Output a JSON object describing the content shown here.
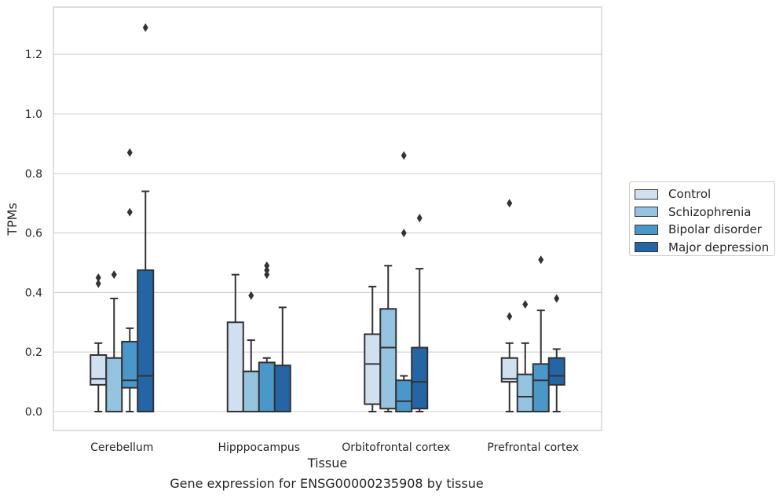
{
  "chart_data": {
    "type": "box",
    "title": "",
    "caption": "Gene expression for ENSG00000235908 by tissue",
    "xlabel": "Tissue",
    "ylabel": "TPMs",
    "ylim": [
      -0.06,
      1.36
    ],
    "yticks": [
      0.0,
      0.2,
      0.4,
      0.6,
      0.8,
      1.0,
      1.2
    ],
    "ytick_labels": [
      "0.0",
      "0.2",
      "0.4",
      "0.6",
      "0.8",
      "1.0",
      "1.2"
    ],
    "grid": "horizontal",
    "legend_position": "right",
    "categories": [
      "Cerebellum",
      "Hipppocampus",
      "Orbitofrontal cortex",
      "Prefrontal cortex"
    ],
    "series": [
      {
        "name": "Control",
        "color": "#d0e0f1",
        "boxes": [
          {
            "whislo": 0.0,
            "q1": 0.09,
            "med": 0.11,
            "q3": 0.19,
            "whishi": 0.23,
            "fliers": [
              0.43,
              0.45
            ]
          },
          {
            "whislo": 0.0,
            "q1": 0.0,
            "med": 0.0,
            "q3": 0.3,
            "whishi": 0.46,
            "fliers": []
          },
          {
            "whislo": 0.0,
            "q1": 0.025,
            "med": 0.16,
            "q3": 0.26,
            "whishi": 0.42,
            "fliers": []
          },
          {
            "whislo": 0.0,
            "q1": 0.1,
            "med": 0.11,
            "q3": 0.18,
            "whishi": 0.23,
            "fliers": [
              0.32,
              0.7
            ]
          }
        ]
      },
      {
        "name": "Schizophrenia",
        "color": "#94c4df",
        "boxes": [
          {
            "whislo": 0.0,
            "q1": 0.0,
            "med": 0.0,
            "q3": 0.18,
            "whishi": 0.38,
            "fliers": [
              0.46
            ]
          },
          {
            "whislo": 0.0,
            "q1": 0.0,
            "med": 0.135,
            "q3": 0.135,
            "whishi": 0.24,
            "fliers": [
              0.39
            ]
          },
          {
            "whislo": 0.0,
            "q1": 0.01,
            "med": 0.215,
            "q3": 0.345,
            "whishi": 0.49,
            "fliers": []
          },
          {
            "whislo": 0.0,
            "q1": 0.0,
            "med": 0.05,
            "q3": 0.125,
            "whishi": 0.23,
            "fliers": [
              0.36
            ]
          }
        ]
      },
      {
        "name": "Bipolar disorder",
        "color": "#4a98c9",
        "boxes": [
          {
            "whislo": 0.0,
            "q1": 0.08,
            "med": 0.105,
            "q3": 0.235,
            "whishi": 0.28,
            "fliers": [
              0.67,
              0.87
            ]
          },
          {
            "whislo": 0.0,
            "q1": 0.0,
            "med": 0.0,
            "q3": 0.165,
            "whishi": 0.18,
            "fliers": [
              0.46,
              0.475,
              0.49
            ]
          },
          {
            "whislo": 0.0,
            "q1": 0.0,
            "med": 0.035,
            "q3": 0.105,
            "whishi": 0.12,
            "fliers": [
              0.6,
              0.86
            ]
          },
          {
            "whislo": 0.0,
            "q1": 0.0,
            "med": 0.105,
            "q3": 0.16,
            "whishi": 0.34,
            "fliers": [
              0.51
            ]
          }
        ]
      },
      {
        "name": "Major depression",
        "color": "#2465a5",
        "boxes": [
          {
            "whislo": 0.0,
            "q1": 0.0,
            "med": 0.12,
            "q3": 0.475,
            "whishi": 0.74,
            "fliers": [
              1.29
            ]
          },
          {
            "whislo": 0.0,
            "q1": 0.0,
            "med": 0.0,
            "q3": 0.155,
            "whishi": 0.35,
            "fliers": []
          },
          {
            "whislo": 0.0,
            "q1": 0.01,
            "med": 0.1,
            "q3": 0.215,
            "whishi": 0.48,
            "fliers": [
              0.65
            ]
          },
          {
            "whislo": 0.0,
            "q1": 0.09,
            "med": 0.12,
            "q3": 0.18,
            "whishi": 0.21,
            "fliers": [
              0.38
            ]
          }
        ]
      }
    ]
  }
}
